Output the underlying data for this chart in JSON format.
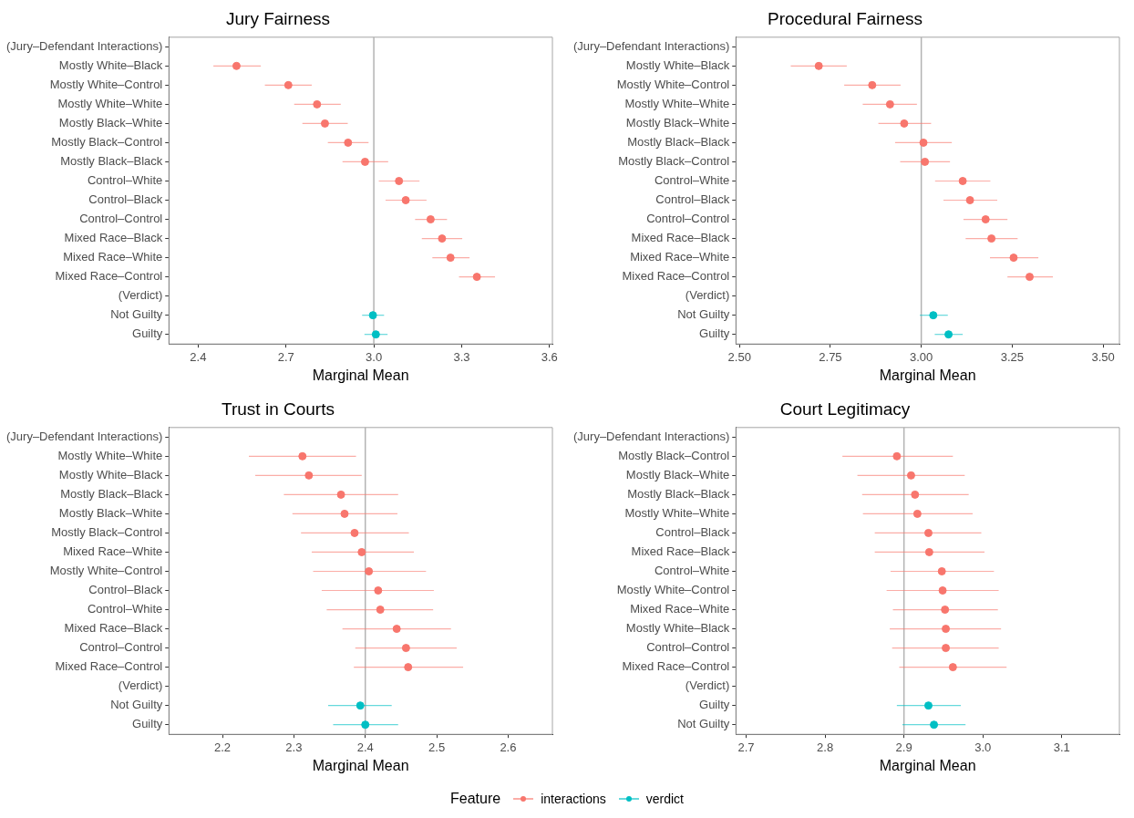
{
  "chart_data": [
    {
      "type": "scatter",
      "orientation": "horizontal",
      "title": "Jury Fairness",
      "xlabel": "Marginal Mean",
      "marker": "circle",
      "legend": "bottom",
      "legend_title": "Feature",
      "categories": [
        "(Jury–Defendant Interactions)",
        "Mostly White–Black",
        "Mostly White–Control",
        "Mostly White–White",
        "Mostly Black–White",
        "Mostly Black–Control",
        "Mostly Black–Black",
        "Control–White",
        "Control–Black",
        "Control–Control",
        "Mixed Race–Black",
        "Mixed Race–White",
        "Mixed Race–Control",
        "(Verdict)",
        "Not Guilty",
        "Guilty"
      ],
      "series": [
        {
          "name": "interactions",
          "color": "#f8766d",
          "values": [
            null,
            2.531,
            2.708,
            2.806,
            2.833,
            2.912,
            2.97,
            3.086,
            3.109,
            3.194,
            3.233,
            3.262,
            3.352,
            null,
            null,
            null
          ],
          "errors": [
            null,
            [
              2.452,
              2.614
            ],
            [
              2.628,
              2.788
            ],
            [
              2.728,
              2.887
            ],
            [
              2.756,
              2.911
            ],
            [
              2.843,
              2.982
            ],
            [
              2.893,
              3.049
            ],
            [
              3.017,
              3.156
            ],
            [
              3.04,
              3.18
            ],
            [
              3.141,
              3.25
            ],
            [
              3.164,
              3.302
            ],
            [
              3.2,
              3.327
            ],
            [
              3.291,
              3.414
            ],
            null,
            null,
            null
          ]
        },
        {
          "name": "verdict",
          "color": "#00bfc4",
          "values": [
            null,
            null,
            null,
            null,
            null,
            null,
            null,
            null,
            null,
            null,
            null,
            null,
            null,
            null,
            2.997,
            3.007
          ],
          "errors": [
            null,
            null,
            null,
            null,
            null,
            null,
            null,
            null,
            null,
            null,
            null,
            null,
            null,
            null,
            [
              2.96,
              3.035
            ],
            [
              2.968,
              3.047
            ]
          ]
        }
      ],
      "xlim": [
        2.3,
        3.61
      ],
      "xticks": [
        2.4,
        2.7,
        {
          "value": 3,
          "label": "3.0"
        },
        3.3,
        3.6
      ],
      "ref_lines": [
        {
          "axis": "x",
          "value": 3,
          "color": "#b3b3b3"
        }
      ]
    },
    {
      "type": "scatter",
      "orientation": "horizontal",
      "title": "Procedural Fairness",
      "xlabel": "Marginal Mean",
      "marker": "circle",
      "categories": [
        "(Jury–Defendant Interactions)",
        "Mostly White–Black",
        "Mostly White–Control",
        "Mostly White–White",
        "Mostly Black–White",
        "Mostly Black–Black",
        "Mostly Black–Control",
        "Control–White",
        "Control–Black",
        "Control–Control",
        "Mixed Race–Black",
        "Mixed Race–White",
        "Mixed Race–Control",
        "(Verdict)",
        "Not Guilty",
        "Guilty"
      ],
      "series": [
        {
          "color": "#f8766d",
          "values": [
            null,
            2.718,
            2.865,
            2.914,
            2.953,
            3.006,
            3.01,
            3.114,
            3.134,
            3.177,
            3.193,
            3.254,
            3.298,
            null,
            null,
            null
          ],
          "errors": [
            null,
            [
              2.641,
              2.795
            ],
            [
              2.788,
              2.943
            ],
            [
              2.839,
              2.988
            ],
            [
              2.882,
              3.027
            ],
            [
              2.928,
              3.084
            ],
            [
              2.942,
              3.079
            ],
            [
              3.038,
              3.19
            ],
            [
              3.061,
              3.209
            ],
            [
              3.116,
              3.237
            ],
            [
              3.122,
              3.265
            ],
            [
              3.189,
              3.322
            ],
            [
              3.237,
              3.362
            ],
            null,
            null,
            null
          ]
        },
        {
          "color": "#00bfc4",
          "values": [
            null,
            null,
            null,
            null,
            null,
            null,
            null,
            null,
            null,
            null,
            null,
            null,
            null,
            null,
            3.033,
            3.075
          ],
          "errors": [
            null,
            null,
            null,
            null,
            null,
            null,
            null,
            null,
            null,
            null,
            null,
            null,
            null,
            null,
            [
              2.996,
              3.073
            ],
            [
              3.037,
              3.114
            ]
          ]
        }
      ],
      "xlim": [
        2.49,
        3.545
      ],
      "xticks": [
        {
          "value": 2.5,
          "label": "2.50"
        },
        2.75,
        {
          "value": 3,
          "label": "3.00"
        },
        3.25,
        {
          "value": 3.5,
          "label": "3.50"
        }
      ],
      "ref_lines": [
        {
          "axis": "x",
          "value": 3,
          "color": "#b3b3b3"
        }
      ]
    },
    {
      "type": "scatter",
      "orientation": "horizontal",
      "title": "Trust in Courts",
      "xlabel": "Marginal Mean",
      "marker": "circle",
      "categories": [
        "(Jury–Defendant Interactions)",
        "Mostly White–White",
        "Mostly White–Black",
        "Mostly Black–Black",
        "Mostly Black–White",
        "Mostly Black–Control",
        "Mixed Race–White",
        "Mostly White–Control",
        "Control–Black",
        "Control–White",
        "Mixed Race–Black",
        "Control–Control",
        "Mixed Race–Control",
        "(Verdict)",
        "Not Guilty",
        "Guilty"
      ],
      "series": [
        {
          "color": "#f8766d",
          "values": [
            null,
            2.312,
            2.321,
            2.366,
            2.371,
            2.385,
            2.395,
            2.405,
            2.418,
            2.421,
            2.444,
            2.457,
            2.46,
            null,
            null,
            null
          ],
          "errors": [
            null,
            [
              2.237,
              2.387
            ],
            [
              2.246,
              2.395
            ],
            [
              2.286,
              2.446
            ],
            [
              2.298,
              2.445
            ],
            [
              2.31,
              2.461
            ],
            [
              2.325,
              2.468
            ],
            [
              2.327,
              2.485
            ],
            [
              2.339,
              2.496
            ],
            [
              2.346,
              2.495
            ],
            [
              2.368,
              2.52
            ],
            [
              2.386,
              2.528
            ],
            [
              2.384,
              2.537
            ],
            null,
            null,
            null
          ]
        },
        {
          "color": "#00bfc4",
          "values": [
            null,
            null,
            null,
            null,
            null,
            null,
            null,
            null,
            null,
            null,
            null,
            null,
            null,
            null,
            2.393,
            2.4
          ],
          "errors": [
            null,
            null,
            null,
            null,
            null,
            null,
            null,
            null,
            null,
            null,
            null,
            null,
            null,
            null,
            [
              2.348,
              2.437
            ],
            [
              2.355,
              2.446
            ]
          ]
        }
      ],
      "xlim": [
        2.125,
        2.662
      ],
      "xticks": [
        2.2,
        2.3,
        2.4,
        2.5,
        2.6
      ],
      "ref_lines": [
        {
          "axis": "x",
          "value": 2.4,
          "color": "#b3b3b3"
        }
      ]
    },
    {
      "type": "scatter",
      "orientation": "horizontal",
      "title": "Court Legitimacy",
      "xlabel": "Marginal Mean",
      "marker": "circle",
      "categories": [
        "(Jury–Defendant Interactions)",
        "Mostly Black–Control",
        "Mostly Black–White",
        "Mostly Black–Black",
        "Mostly White–White",
        "Control–Black",
        "Mixed Race–Black",
        "Control–White",
        "Mostly White–Control",
        "Mixed Race–White",
        "Mostly White–Black",
        "Control–Control",
        "Mixed Race–Control",
        "(Verdict)",
        "Guilty",
        "Not Guilty"
      ],
      "series": [
        {
          "color": "#f8766d",
          "values": [
            null,
            2.891,
            2.909,
            2.914,
            2.917,
            2.931,
            2.932,
            2.948,
            2.949,
            2.952,
            2.953,
            2.953,
            2.962,
            null,
            null,
            null
          ],
          "errors": [
            null,
            [
              2.822,
              2.962
            ],
            [
              2.841,
              2.977
            ],
            [
              2.847,
              2.982
            ],
            [
              2.848,
              2.987
            ],
            [
              2.863,
              2.998
            ],
            [
              2.863,
              3.002
            ],
            [
              2.883,
              3.014
            ],
            [
              2.878,
              3.02
            ],
            [
              2.886,
              3.019
            ],
            [
              2.882,
              3.023
            ],
            [
              2.885,
              3.02
            ],
            [
              2.894,
              3.03
            ],
            null,
            null,
            null
          ]
        },
        {
          "color": "#00bfc4",
          "values": [
            null,
            null,
            null,
            null,
            null,
            null,
            null,
            null,
            null,
            null,
            null,
            null,
            null,
            null,
            2.931,
            2.938
          ],
          "errors": [
            null,
            null,
            null,
            null,
            null,
            null,
            null,
            null,
            null,
            null,
            null,
            null,
            null,
            null,
            [
              2.891,
              2.972
            ],
            [
              2.898,
              2.978
            ]
          ]
        }
      ],
      "xlim": [
        2.687,
        3.173
      ],
      "xticks": [
        2.7,
        2.8,
        2.9,
        {
          "value": 3,
          "label": "3.0"
        },
        3.1
      ],
      "ref_lines": [
        {
          "axis": "x",
          "value": 2.9,
          "color": "#b3b3b3"
        }
      ]
    }
  ]
}
